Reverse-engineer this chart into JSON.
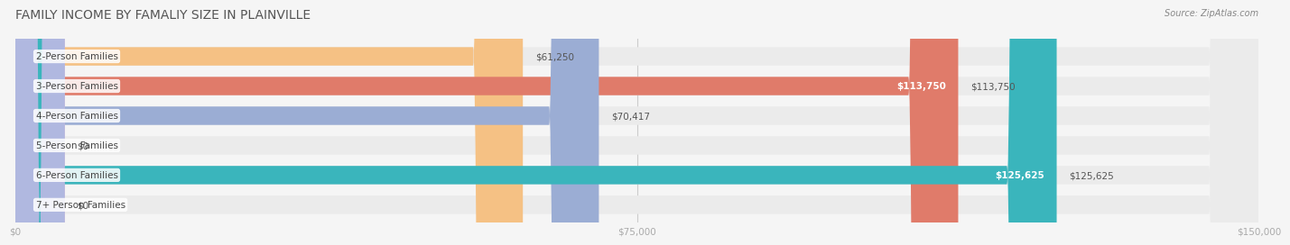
{
  "title": "FAMILY INCOME BY FAMALIY SIZE IN PLAINVILLE",
  "source": "Source: ZipAtlas.com",
  "categories": [
    "2-Person Families",
    "3-Person Families",
    "4-Person Families",
    "5-Person Families",
    "6-Person Families",
    "7+ Person Families"
  ],
  "values": [
    61250,
    113750,
    70417,
    0,
    125625,
    0
  ],
  "bar_colors": [
    "#f5c184",
    "#e07b6a",
    "#9badd4",
    "#c9a8d4",
    "#3ab5bc",
    "#b0b8e0"
  ],
  "label_colors": [
    "#888888",
    "#ffffff",
    "#888888",
    "#888888",
    "#ffffff",
    "#888888"
  ],
  "value_labels": [
    "$61,250",
    "$113,750",
    "$70,417",
    "$0",
    "$125,625",
    "$0"
  ],
  "x_max": 150000,
  "x_ticks": [
    0,
    75000,
    150000
  ],
  "x_tick_labels": [
    "$0",
    "$75,000",
    "$150,000"
  ],
  "background_color": "#f5f5f5",
  "bar_bg_color": "#ebebeb",
  "title_fontsize": 10,
  "label_fontsize": 7.5,
  "value_fontsize": 7.5,
  "bar_height": 0.62,
  "figsize": [
    14.06,
    3.05
  ]
}
